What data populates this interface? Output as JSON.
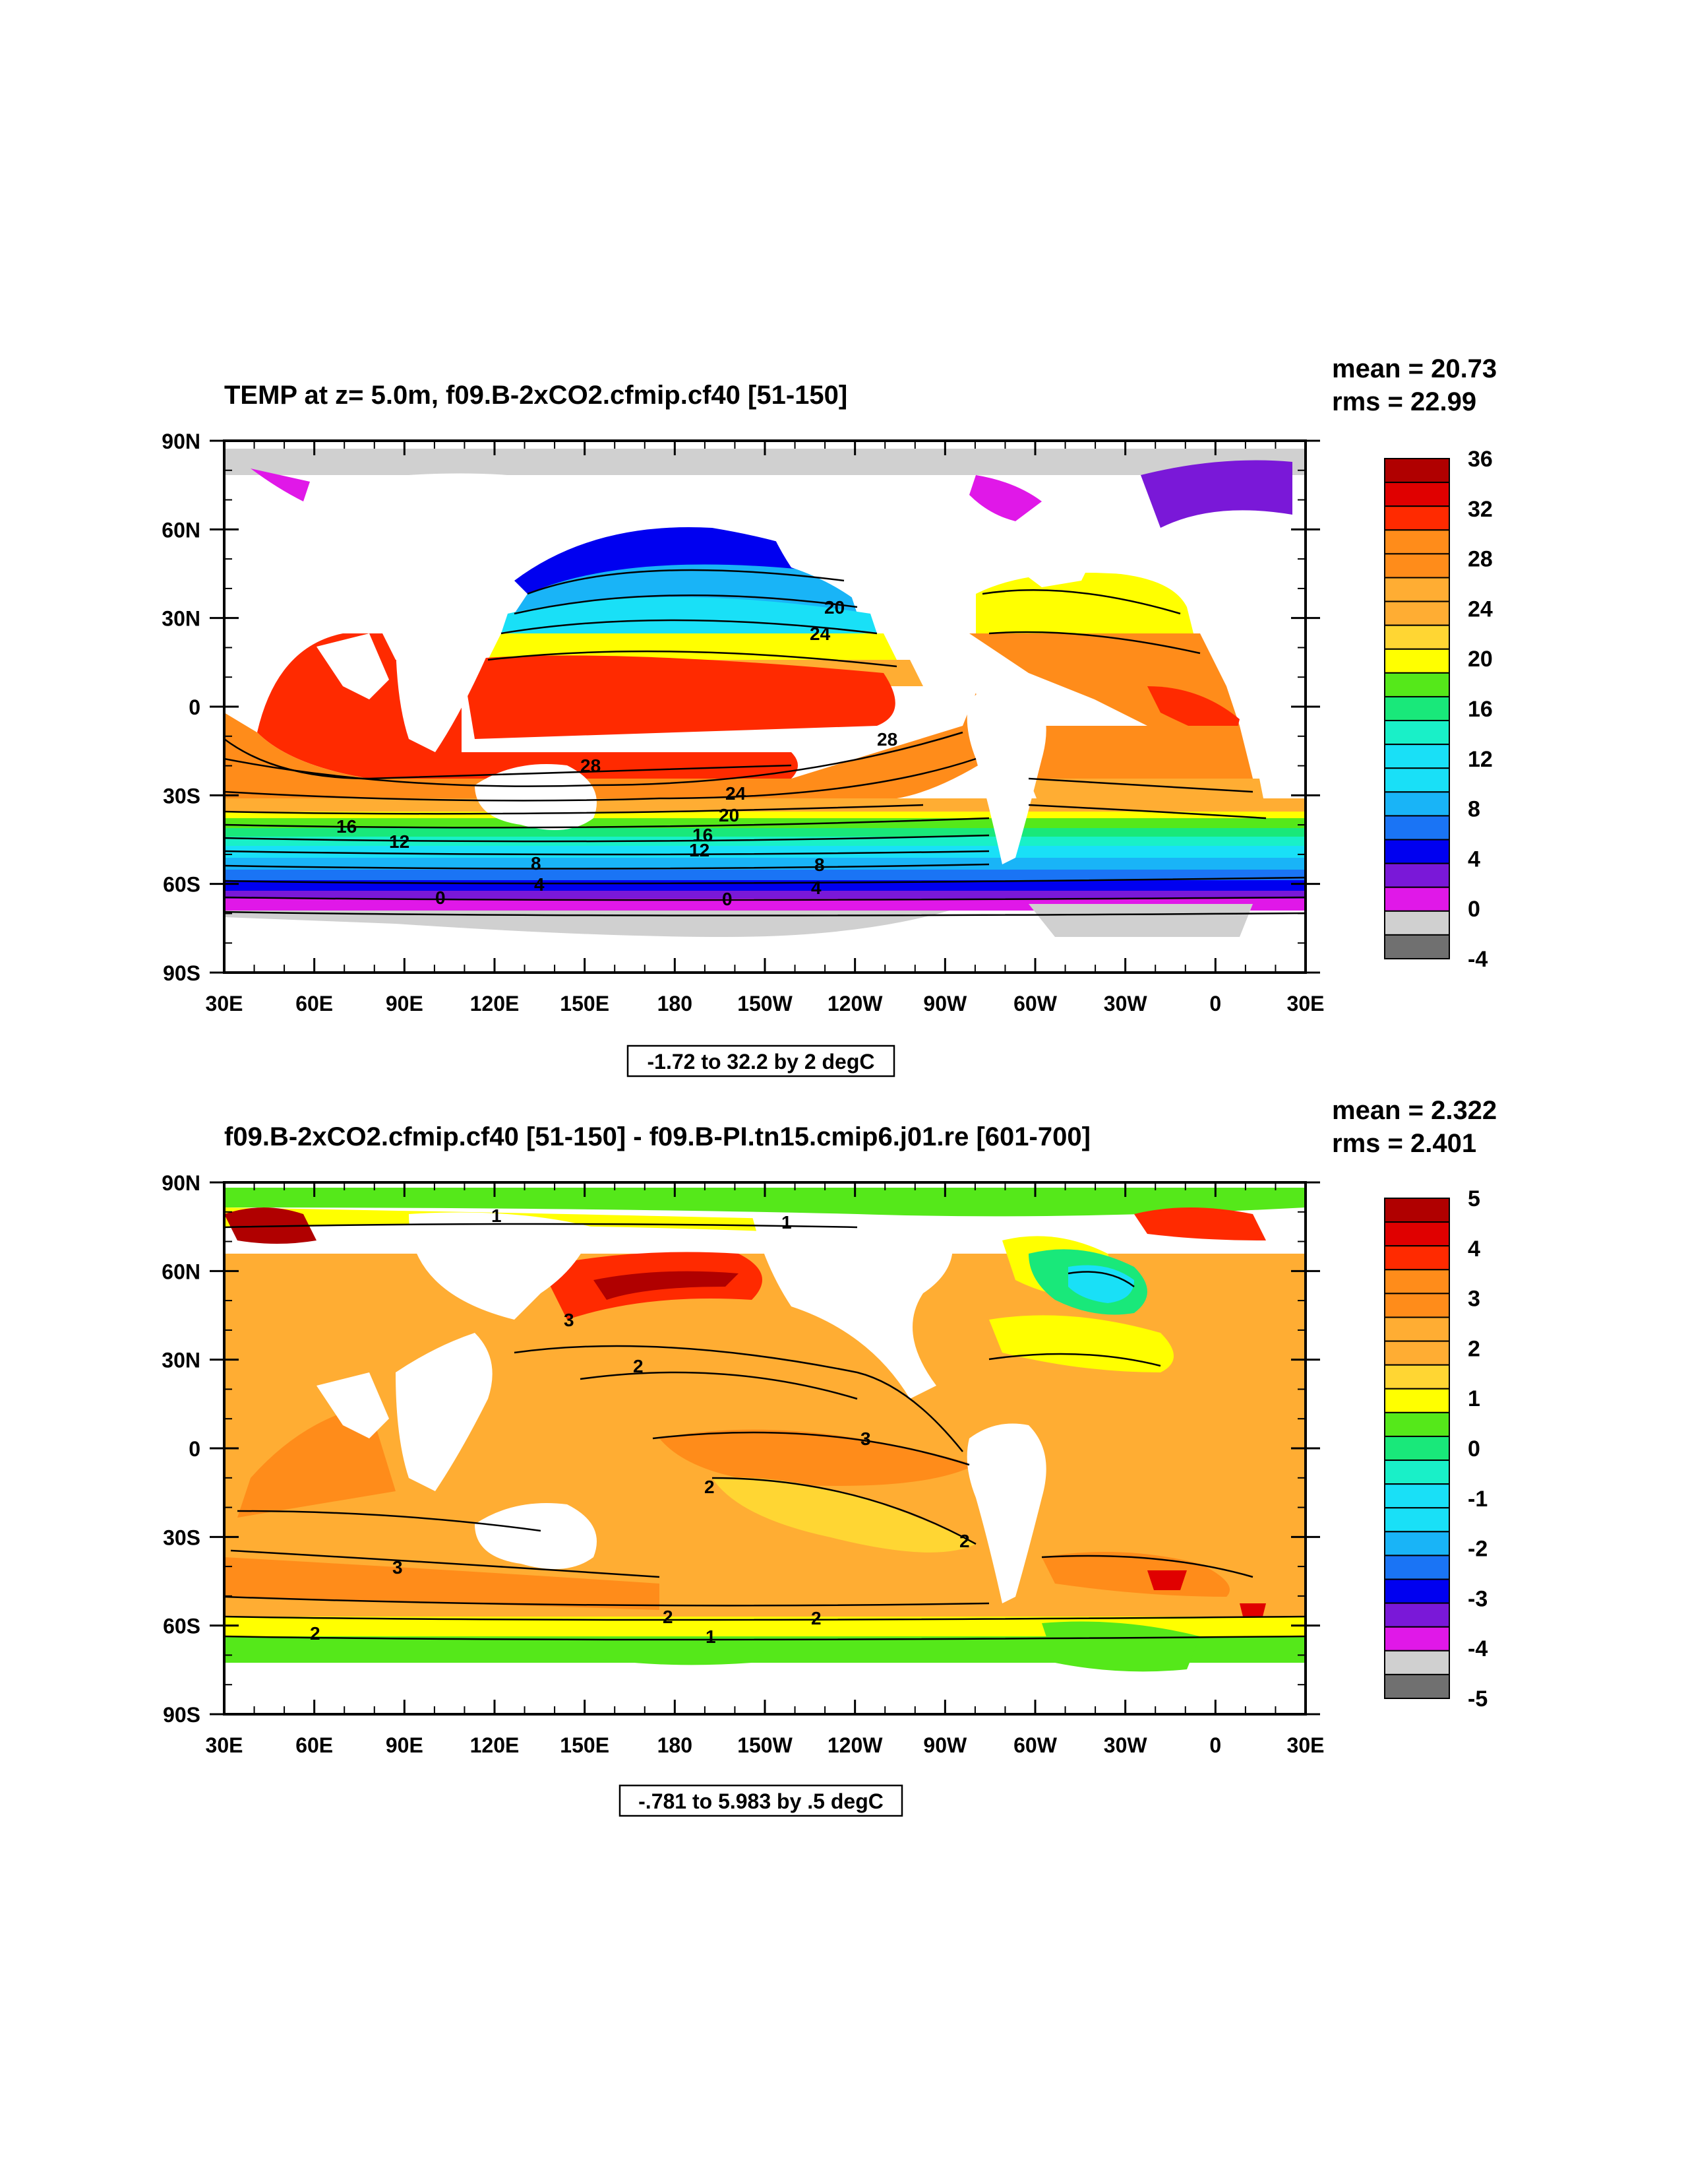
{
  "palette": {
    "ocean_ramp": [
      "#b00000",
      "#e00000",
      "#ff2a00",
      "#ff8c1a",
      "#ffad33",
      "#ffd633",
      "#ffff00",
      "#55e81a",
      "#19e87a",
      "#19f0c8",
      "#19e0f7",
      "#19b4f7",
      "#1a74f5",
      "#0000f0",
      "#7a18d8",
      "#e018e8"
    ],
    "neg_grey": "#d0d0d0",
    "neg_dark": "#707070",
    "land": "#ffffff",
    "line": "#000000"
  },
  "axes": {
    "x_ticks": [
      "30E",
      "60E",
      "90E",
      "120E",
      "150E",
      "180",
      "150W",
      "120W",
      "90W",
      "60W",
      "30W",
      "0",
      "30E"
    ],
    "y_ticks": [
      "90N",
      "60N",
      "30N",
      "0",
      "30S",
      "60S",
      "90S"
    ]
  },
  "panels": [
    {
      "title": "TEMP at z=   5.0m, f09.B-2xCO2.cfmip.cf40 [51-150]",
      "stats": {
        "mean": "mean = 20.73",
        "rms": "rms = 22.99"
      },
      "range_label": "-1.72 to 32.2 by 2 degC",
      "colorbar": {
        "labels": [
          "36",
          "32",
          "28",
          "24",
          "20",
          "16",
          "12",
          "8",
          "4",
          "0",
          "-4"
        ],
        "colors": [
          "#b00000",
          "#e00000",
          "#ff2a00",
          "#ff8c1a",
          "#ff8c1a",
          "#ffad33",
          "#ffad33",
          "#ffd633",
          "#ffff00",
          "#55e81a",
          "#19e87a",
          "#19f0c8",
          "#19e0f7",
          "#19e0f7",
          "#19b4f7",
          "#1a74f5",
          "#0000f0",
          "#7a18d8",
          "#e018e8",
          "#d0d0d0",
          "#707070"
        ]
      },
      "contour_labels": [
        "20",
        "24",
        "28",
        "28",
        "24",
        "20",
        "16",
        "12",
        "16",
        "12",
        "8",
        "8",
        "4",
        "4",
        "0",
        "0"
      ]
    },
    {
      "title": "f09.B-2xCO2.cfmip.cf40 [51-150] - f09.B-PI.tn15.cmip6.j01.re [601-700]",
      "stats": {
        "mean": "mean = 2.322",
        "rms": "rms = 2.401"
      },
      "range_label": "-.781 to 5.983 by .5 degC",
      "colorbar": {
        "labels": [
          "5",
          "4",
          "3",
          "2",
          "1",
          "0",
          "-1",
          "-2",
          "-3",
          "-4",
          "-5"
        ],
        "colors": [
          "#b00000",
          "#e00000",
          "#ff2a00",
          "#ff8c1a",
          "#ff8c1a",
          "#ffad33",
          "#ffad33",
          "#ffd633",
          "#ffff00",
          "#55e81a",
          "#19e87a",
          "#19f0c8",
          "#19e0f7",
          "#19e0f7",
          "#19b4f7",
          "#1a74f5",
          "#0000f0",
          "#7a18d8",
          "#e018e8",
          "#d0d0d0",
          "#707070"
        ]
      },
      "contour_labels": [
        "1",
        "1",
        "2",
        "3",
        "3",
        "2",
        "2",
        "3",
        "2",
        "2",
        "2",
        "1"
      ]
    }
  ]
}
